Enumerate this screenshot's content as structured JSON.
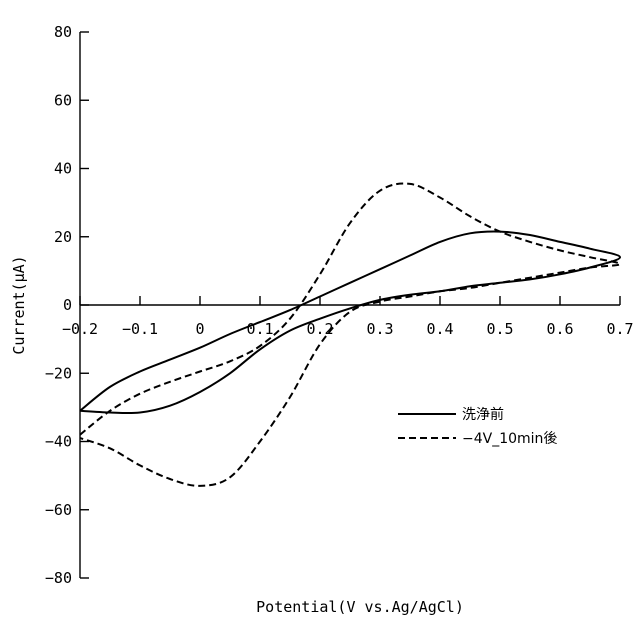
{
  "chart_data": {
    "type": "line",
    "title": "",
    "xlabel": "Potential(V vs.Ag/AgCl)",
    "ylabel": "Current(μA)",
    "xlim": [
      -0.2,
      0.7
    ],
    "ylim": [
      -80,
      80
    ],
    "xticks": [
      -0.2,
      -0.1,
      0,
      0.1,
      0.2,
      0.3,
      0.4,
      0.5,
      0.6,
      0.7
    ],
    "xtick_labels": [
      "−0.2",
      "−0.1",
      "0",
      "0.1",
      "0.2",
      "0.3",
      "0.4",
      "0.5",
      "0.6",
      "0.7"
    ],
    "yticks": [
      80,
      60,
      40,
      20,
      0,
      -20,
      -40,
      -60,
      -80
    ],
    "ytick_labels": [
      "80",
      "60",
      "40",
      "20",
      "0",
      "−20",
      "−40",
      "−60",
      "−80"
    ],
    "grid": false,
    "legend_position": "lower-right",
    "series": [
      {
        "name": "洗浄前",
        "style": "solid",
        "color": "#000000",
        "x": [
          -0.2,
          -0.15,
          -0.1,
          -0.05,
          0.0,
          0.05,
          0.1,
          0.15,
          0.2,
          0.25,
          0.3,
          0.35,
          0.4,
          0.45,
          0.5,
          0.55,
          0.6,
          0.65,
          0.7,
          0.65,
          0.6,
          0.55,
          0.5,
          0.45,
          0.4,
          0.35,
          0.3,
          0.25,
          0.2,
          0.15,
          0.1,
          0.05,
          0.0,
          -0.05,
          -0.1,
          -0.15,
          -0.2
        ],
        "y": [
          -31,
          -24,
          -19.5,
          -16,
          -12.5,
          -8.5,
          -5,
          -1.5,
          2.5,
          6.5,
          10.5,
          14.5,
          18.5,
          21,
          21.5,
          20.5,
          18.5,
          16.5,
          14,
          11,
          9,
          7.5,
          6.5,
          5.5,
          4,
          3,
          1.5,
          -1,
          -4,
          -7.5,
          -13,
          -20,
          -25.5,
          -29.5,
          -31.5,
          -31.5,
          -31
        ]
      },
      {
        "name": "−4V_10min後",
        "style": "dashed",
        "color": "#000000",
        "x": [
          -0.2,
          -0.15,
          -0.1,
          -0.05,
          0.0,
          0.05,
          0.1,
          0.15,
          0.2,
          0.25,
          0.3,
          0.35,
          0.4,
          0.45,
          0.5,
          0.55,
          0.6,
          0.65,
          0.7,
          0.65,
          0.6,
          0.55,
          0.5,
          0.45,
          0.4,
          0.35,
          0.3,
          0.25,
          0.2,
          0.15,
          0.1,
          0.05,
          0.0,
          -0.05,
          -0.1,
          -0.15,
          -0.2
        ],
        "y": [
          -38,
          -31,
          -26,
          -22.5,
          -19.5,
          -16.5,
          -12,
          -4,
          9,
          24,
          33.5,
          35.5,
          31.5,
          26,
          21.5,
          18.5,
          16,
          14,
          12,
          11,
          9.5,
          8,
          6.5,
          5,
          4,
          2.5,
          1,
          -2,
          -11.5,
          -27,
          -40,
          -50.5,
          -53,
          -51,
          -47,
          -42,
          -39
        ]
      }
    ]
  }
}
